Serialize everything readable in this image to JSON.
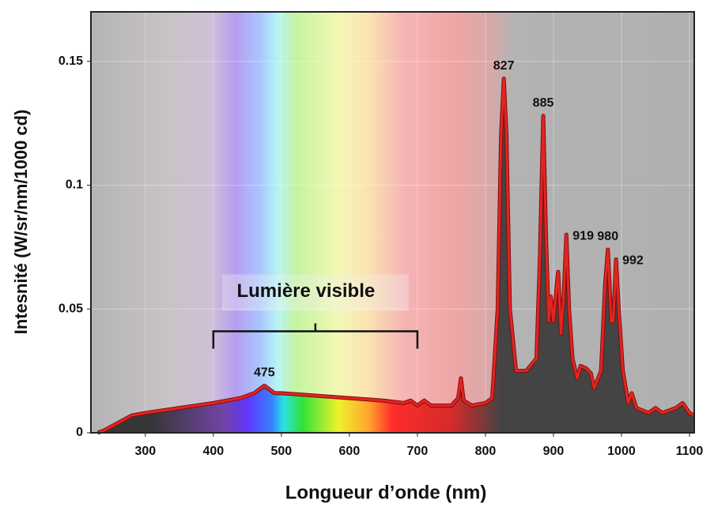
{
  "chart_data": {
    "type": "area",
    "y_label": "Intesnité (W/sr/nm/1000 cd)",
    "x_label": "Longueur d’onde (nm)",
    "xlim": [
      220,
      1107
    ],
    "ylim": [
      0,
      0.17
    ],
    "xticks": [
      300,
      400,
      500,
      600,
      700,
      800,
      900,
      1000,
      1100
    ],
    "yticks": [
      0,
      0.05,
      0.1,
      0.15
    ],
    "grid": true,
    "series": [
      {
        "color": "#e52420",
        "x": [
          230,
          240,
          260,
          280,
          300,
          350,
          400,
          440,
          460,
          470,
          475,
          480,
          490,
          500,
          550,
          600,
          650,
          680,
          690,
          700,
          710,
          720,
          750,
          760,
          764,
          768,
          780,
          800,
          810,
          818,
          823,
          827,
          831,
          836,
          845,
          860,
          875,
          880,
          885,
          889,
          893,
          896,
          900,
          905,
          907,
          911,
          915,
          919,
          923,
          928,
          935,
          940,
          948,
          955,
          960,
          970,
          976,
          980,
          985,
          988,
          992,
          996,
          1002,
          1010,
          1015,
          1022,
          1040,
          1050,
          1060,
          1080,
          1090,
          1100,
          1107
        ],
        "values": [
          0,
          0.001,
          0.004,
          0.007,
          0.008,
          0.01,
          0.012,
          0.014,
          0.016,
          0.018,
          0.019,
          0.018,
          0.016,
          0.016,
          0.015,
          0.014,
          0.013,
          0.012,
          0.013,
          0.011,
          0.013,
          0.011,
          0.011,
          0.014,
          0.022,
          0.013,
          0.011,
          0.012,
          0.014,
          0.05,
          0.12,
          0.143,
          0.12,
          0.05,
          0.025,
          0.025,
          0.03,
          0.07,
          0.128,
          0.08,
          0.045,
          0.055,
          0.045,
          0.06,
          0.065,
          0.04,
          0.055,
          0.08,
          0.05,
          0.03,
          0.022,
          0.027,
          0.026,
          0.024,
          0.018,
          0.025,
          0.06,
          0.074,
          0.045,
          0.045,
          0.07,
          0.05,
          0.025,
          0.012,
          0.016,
          0.01,
          0.008,
          0.01,
          0.008,
          0.01,
          0.012,
          0.008,
          0.007
        ]
      }
    ],
    "annotations": [
      {
        "x": 475,
        "y": 0.019
      },
      {
        "x": 827,
        "y": 0.143
      },
      {
        "x": 885,
        "y": 0.128
      },
      {
        "x": 919,
        "y": 0.08
      },
      {
        "x": 980,
        "y": 0.074
      },
      {
        "x": 992,
        "y": 0.07
      }
    ],
    "visible_range": {
      "label": "Lumière visible",
      "x": [
        400,
        700
      ],
      "y": 0.041
    }
  }
}
